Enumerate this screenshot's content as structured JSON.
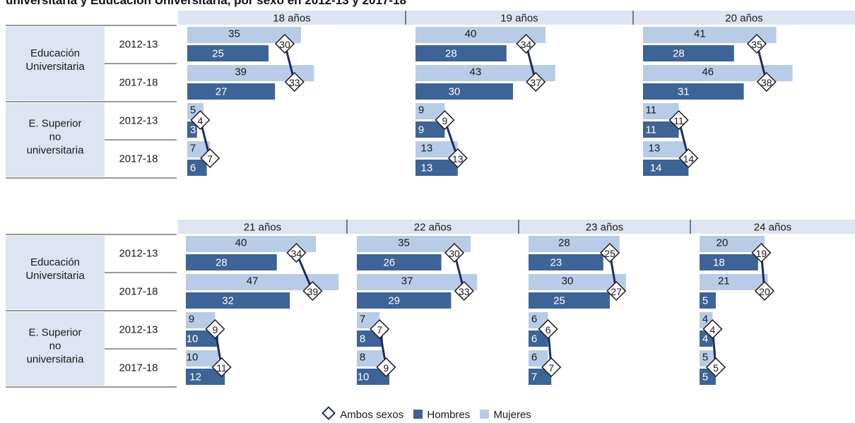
{
  "title": "universitaria y Educación Universitaria, por sexo en 2012-13 y 2017-18",
  "colors": {
    "mujeres": "#b8cce8",
    "hombres": "#3e6396",
    "ambos": "#1c2f64",
    "header": "#dce5f1",
    "label_bg": "#dce5f1"
  },
  "legend": {
    "ambos": "Ambos sexos",
    "hombres": "Hombres",
    "mujeres": "Mujeres"
  },
  "chart_data": {
    "type": "bar",
    "orientation": "horizontal",
    "row_groups": [
      {
        "label": "Educación\nUniversitaria",
        "years": [
          "2012-13",
          "2017-18"
        ]
      },
      {
        "label": "E. Superior\nno\nuniversitaria",
        "years": [
          "2012-13",
          "2017-18"
        ]
      }
    ],
    "series_names": [
      "Mujeres",
      "Hombres",
      "Ambos sexos"
    ],
    "panels": [
      {
        "title": "18 años",
        "rows": [
          {
            "mujeres": 35,
            "hombres": 25,
            "ambos": 30
          },
          {
            "mujeres": 39,
            "hombres": 27,
            "ambos": 33
          },
          {
            "mujeres": 5,
            "hombres": 3,
            "ambos": 4
          },
          {
            "mujeres": 7,
            "hombres": 6,
            "ambos": 7
          }
        ]
      },
      {
        "title": "19 años",
        "rows": [
          {
            "mujeres": 40,
            "hombres": 28,
            "ambos": 34
          },
          {
            "mujeres": 43,
            "hombres": 30,
            "ambos": 37
          },
          {
            "mujeres": 9,
            "hombres": 9,
            "ambos": 9
          },
          {
            "mujeres": 13,
            "hombres": 13,
            "ambos": 13
          }
        ]
      },
      {
        "title": "20 años",
        "rows": [
          {
            "mujeres": 41,
            "hombres": 28,
            "ambos": 35
          },
          {
            "mujeres": 46,
            "hombres": 31,
            "ambos": 38
          },
          {
            "mujeres": 11,
            "hombres": 11,
            "ambos": 11
          },
          {
            "mujeres": 13,
            "hombres": 14,
            "ambos": 14
          }
        ]
      },
      {
        "title": "21 años",
        "rows": [
          {
            "mujeres": 40,
            "hombres": 28,
            "ambos": 34
          },
          {
            "mujeres": 47,
            "hombres": 32,
            "ambos": 39
          },
          {
            "mujeres": 9,
            "hombres": 10,
            "ambos": 9
          },
          {
            "mujeres": 10,
            "hombres": 12,
            "ambos": 11
          }
        ]
      },
      {
        "title": "22 años",
        "rows": [
          {
            "mujeres": 35,
            "hombres": 26,
            "ambos": 30
          },
          {
            "mujeres": 37,
            "hombres": 29,
            "ambos": 33
          },
          {
            "mujeres": 7,
            "hombres": 8,
            "ambos": 7
          },
          {
            "mujeres": 8,
            "hombres": 10,
            "ambos": 9
          }
        ]
      },
      {
        "title": "23 años",
        "rows": [
          {
            "mujeres": 28,
            "hombres": 23,
            "ambos": 25
          },
          {
            "mujeres": 30,
            "hombres": 25,
            "ambos": 27
          },
          {
            "mujeres": 6,
            "hombres": 6,
            "ambos": 6
          },
          {
            "mujeres": 6,
            "hombres": 7,
            "ambos": 7
          }
        ]
      },
      {
        "title": "24 años",
        "rows": [
          {
            "mujeres": 20,
            "hombres": 18,
            "ambos": 19
          },
          {
            "mujeres": 21,
            "hombres": 5,
            "ambos": 20
          },
          {
            "mujeres": 4,
            "hombres": 4,
            "ambos": 4
          },
          {
            "mujeres": 5,
            "hombres": 5,
            "ambos": 5
          }
        ]
      }
    ]
  }
}
